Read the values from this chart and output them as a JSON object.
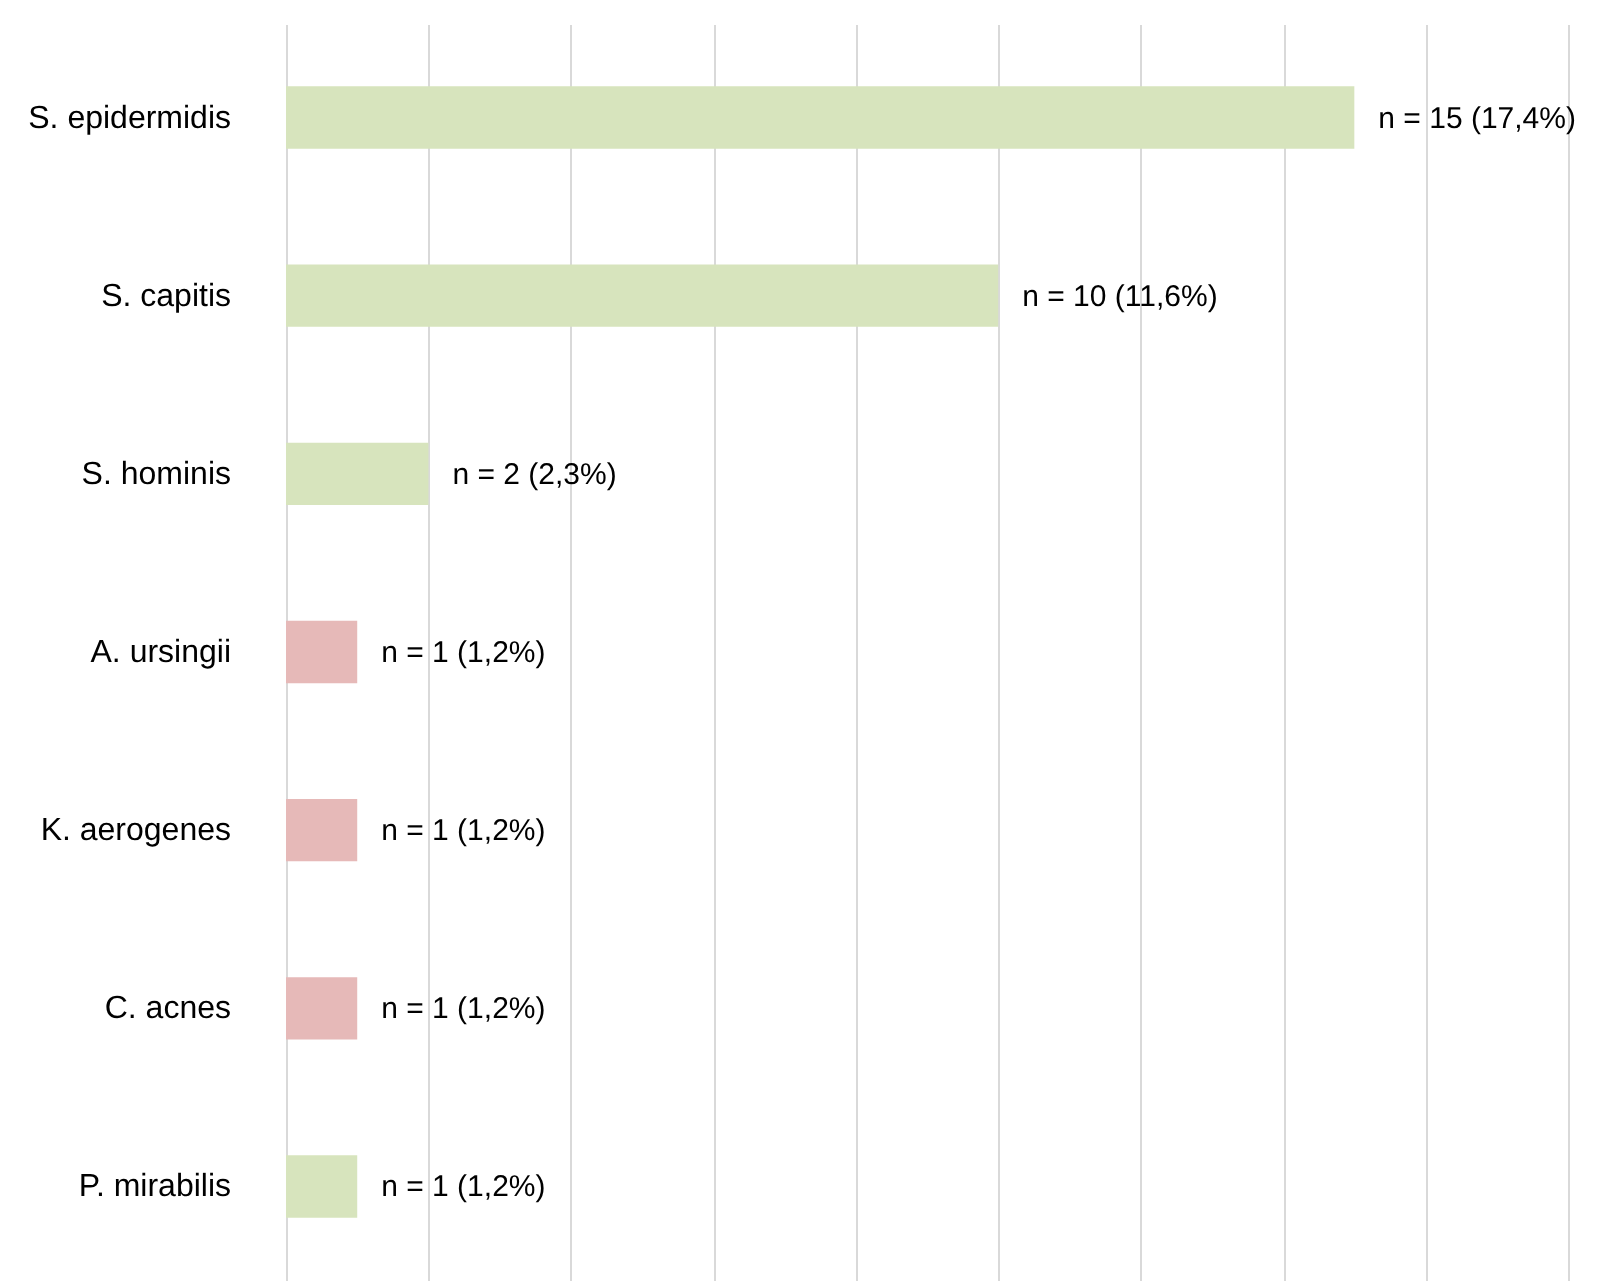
{
  "chart_data": {
    "type": "bar",
    "orientation": "horizontal",
    "categories": [
      "S. epidermidis",
      "S. capitis",
      "S. hominis",
      "A. ursingii",
      "K. aerogenes",
      "C. acnes",
      "P. mirabilis"
    ],
    "values": [
      15,
      10,
      2,
      1,
      1,
      1,
      1
    ],
    "colors": [
      "#d7e4bd",
      "#d7e4bd",
      "#d7e4bd",
      "#e6b9b8",
      "#e6b9b8",
      "#e6b9b8",
      "#d7e4bd"
    ],
    "value_labels": [
      "n = 15 (17,4%)",
      "n = 10 (11,6%)",
      "n = 2 (2,3%)",
      "n = 1 (1,2%)",
      "n = 1 (1,2%)",
      "n = 1 (1,2%)",
      "n = 1 (1,2%)"
    ],
    "xlim": [
      0,
      18
    ],
    "xticks": [
      {
        "value": 0,
        "label": null
      },
      {
        "value": 2,
        "label": null
      },
      {
        "value": 4,
        "label": null
      },
      {
        "value": 6,
        "label": null
      },
      {
        "value": 8,
        "label": null
      },
      {
        "value": 10,
        "label": null
      },
      {
        "value": 12,
        "label": null
      },
      {
        "value": 14,
        "label": null
      },
      {
        "value": 16,
        "label": null
      },
      {
        "value": 18,
        "label": null
      }
    ],
    "grid": "x",
    "tick_labels": "y"
  }
}
